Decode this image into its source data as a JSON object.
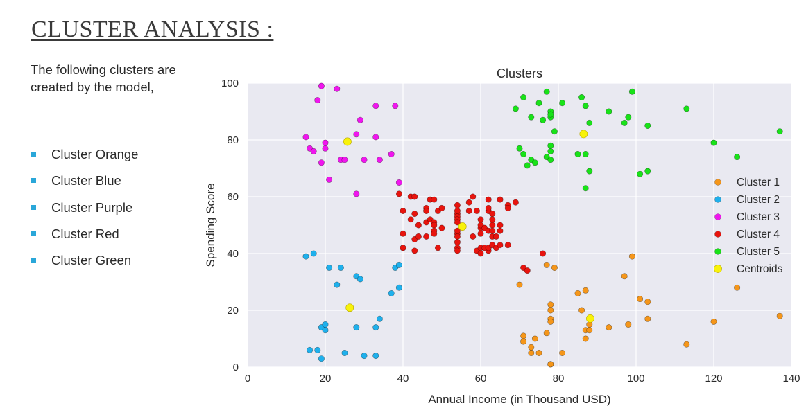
{
  "page": {
    "title": "CLUSTER ANALYSIS :",
    "intro": "The following clusters are created by the model,",
    "bullets": [
      "Cluster Orange",
      "Cluster Blue",
      "Cluster Purple",
      "Cluster Red",
      "Cluster Green"
    ],
    "bullet_color": "#2aa7d9"
  },
  "chart_data": {
    "type": "scatter",
    "title": "Clusters",
    "xlabel": "Annual Income (in Thousand USD)",
    "ylabel": "Spending Score",
    "xlim": [
      0,
      140
    ],
    "ylim": [
      0,
      100
    ],
    "xticks": [
      0,
      20,
      40,
      60,
      80,
      100,
      120,
      140
    ],
    "yticks": [
      0,
      20,
      40,
      60,
      80,
      100
    ],
    "grid": true,
    "background": "#e9e9f1",
    "legend_position": "right",
    "series": [
      {
        "name": "Cluster 1",
        "color": "#f5961a",
        "points": [
          [
            70,
            29
          ],
          [
            71,
            11
          ],
          [
            71,
            9
          ],
          [
            73,
            5
          ],
          [
            73,
            7
          ],
          [
            74,
            10
          ],
          [
            75,
            5
          ],
          [
            77,
            12
          ],
          [
            77,
            36
          ],
          [
            78,
            22
          ],
          [
            78,
            20
          ],
          [
            78,
            17
          ],
          [
            78,
            16
          ],
          [
            78,
            1
          ],
          [
            78,
            1
          ],
          [
            79,
            35
          ],
          [
            81,
            5
          ],
          [
            85,
            26
          ],
          [
            86,
            20
          ],
          [
            87,
            27
          ],
          [
            87,
            13
          ],
          [
            87,
            10
          ],
          [
            88,
            13
          ],
          [
            88,
            15
          ],
          [
            93,
            14
          ],
          [
            97,
            32
          ],
          [
            98,
            15
          ],
          [
            99,
            39
          ],
          [
            101,
            24
          ],
          [
            103,
            17
          ],
          [
            103,
            23
          ],
          [
            113,
            8
          ],
          [
            120,
            16
          ],
          [
            126,
            28
          ],
          [
            137,
            18
          ]
        ]
      },
      {
        "name": "Cluster 2",
        "color": "#1fb0ec",
        "points": [
          [
            15,
            39
          ],
          [
            16,
            6
          ],
          [
            17,
            40
          ],
          [
            18,
            6
          ],
          [
            19,
            3
          ],
          [
            19,
            14
          ],
          [
            20,
            15
          ],
          [
            20,
            13
          ],
          [
            21,
            35
          ],
          [
            23,
            29
          ],
          [
            24,
            35
          ],
          [
            25,
            5
          ],
          [
            28,
            14
          ],
          [
            28,
            32
          ],
          [
            29,
            31
          ],
          [
            30,
            4
          ],
          [
            33,
            4
          ],
          [
            33,
            14
          ],
          [
            34,
            17
          ],
          [
            37,
            26
          ],
          [
            38,
            35
          ],
          [
            39,
            36
          ],
          [
            39,
            28
          ]
        ]
      },
      {
        "name": "Cluster 3",
        "color": "#f016ee",
        "points": [
          [
            15,
            81
          ],
          [
            16,
            77
          ],
          [
            17,
            76
          ],
          [
            18,
            94
          ],
          [
            19,
            72
          ],
          [
            19,
            99
          ],
          [
            20,
            77
          ],
          [
            20,
            79
          ],
          [
            21,
            66
          ],
          [
            23,
            98
          ],
          [
            24,
            73
          ],
          [
            25,
            73
          ],
          [
            28,
            82
          ],
          [
            28,
            61
          ],
          [
            29,
            87
          ],
          [
            30,
            73
          ],
          [
            33,
            81
          ],
          [
            33,
            92
          ],
          [
            34,
            73
          ],
          [
            37,
            75
          ],
          [
            38,
            92
          ],
          [
            39,
            65
          ]
        ]
      },
      {
        "name": "Cluster 4",
        "color": "#e8140e",
        "points": [
          [
            39,
            61
          ],
          [
            40,
            55
          ],
          [
            40,
            47
          ],
          [
            40,
            42
          ],
          [
            40,
            42
          ],
          [
            42,
            52
          ],
          [
            42,
            60
          ],
          [
            43,
            60
          ],
          [
            43,
            54
          ],
          [
            43,
            45
          ],
          [
            43,
            41
          ],
          [
            44,
            50
          ],
          [
            44,
            46
          ],
          [
            46,
            51
          ],
          [
            46,
            46
          ],
          [
            46,
            56
          ],
          [
            46,
            55
          ],
          [
            47,
            52
          ],
          [
            47,
            59
          ],
          [
            48,
            51
          ],
          [
            48,
            59
          ],
          [
            48,
            50
          ],
          [
            48,
            48
          ],
          [
            48,
            47
          ],
          [
            49,
            55
          ],
          [
            49,
            42
          ],
          [
            50,
            49
          ],
          [
            50,
            56
          ],
          [
            54,
            47
          ],
          [
            54,
            54
          ],
          [
            54,
            53
          ],
          [
            54,
            48
          ],
          [
            54,
            52
          ],
          [
            54,
            42
          ],
          [
            54,
            51
          ],
          [
            54,
            55
          ],
          [
            54,
            41
          ],
          [
            54,
            44
          ],
          [
            54,
            57
          ],
          [
            54,
            46
          ],
          [
            57,
            58
          ],
          [
            57,
            55
          ],
          [
            58,
            60
          ],
          [
            58,
            46
          ],
          [
            59,
            55
          ],
          [
            59,
            41
          ],
          [
            60,
            49
          ],
          [
            60,
            40
          ],
          [
            60,
            42
          ],
          [
            60,
            52
          ],
          [
            60,
            47
          ],
          [
            60,
            50
          ],
          [
            61,
            42
          ],
          [
            61,
            49
          ],
          [
            62,
            41
          ],
          [
            62,
            48
          ],
          [
            62,
            59
          ],
          [
            62,
            55
          ],
          [
            62,
            56
          ],
          [
            62,
            42
          ],
          [
            63,
            50
          ],
          [
            63,
            46
          ],
          [
            63,
            43
          ],
          [
            63,
            48
          ],
          [
            63,
            52
          ],
          [
            63,
            54
          ],
          [
            64,
            42
          ],
          [
            64,
            46
          ],
          [
            65,
            48
          ],
          [
            65,
            50
          ],
          [
            65,
            43
          ],
          [
            65,
            59
          ],
          [
            67,
            43
          ],
          [
            67,
            57
          ],
          [
            67,
            56
          ],
          [
            69,
            58
          ],
          [
            71,
            35
          ],
          [
            72,
            34
          ],
          [
            76,
            40
          ]
        ]
      },
      {
        "name": "Cluster 5",
        "color": "#19e219",
        "points": [
          [
            69,
            91
          ],
          [
            70,
            77
          ],
          [
            71,
            95
          ],
          [
            71,
            75
          ],
          [
            72,
            71
          ],
          [
            73,
            88
          ],
          [
            73,
            73
          ],
          [
            74,
            72
          ],
          [
            75,
            93
          ],
          [
            76,
            87
          ],
          [
            77,
            97
          ],
          [
            77,
            74
          ],
          [
            78,
            90
          ],
          [
            78,
            88
          ],
          [
            78,
            89
          ],
          [
            78,
            78
          ],
          [
            78,
            73
          ],
          [
            78,
            76
          ],
          [
            79,
            83
          ],
          [
            81,
            93
          ],
          [
            85,
            75
          ],
          [
            86,
            95
          ],
          [
            87,
            63
          ],
          [
            87,
            75
          ],
          [
            87,
            92
          ],
          [
            88,
            86
          ],
          [
            88,
            69
          ],
          [
            93,
            90
          ],
          [
            97,
            86
          ],
          [
            98,
            88
          ],
          [
            99,
            97
          ],
          [
            101,
            68
          ],
          [
            103,
            85
          ],
          [
            103,
            69
          ],
          [
            113,
            91
          ],
          [
            120,
            79
          ],
          [
            126,
            74
          ],
          [
            137,
            83
          ]
        ]
      },
      {
        "name": "Centroids",
        "color": "#f8f20a",
        "points": [
          [
            88.2,
            17.1
          ],
          [
            26.3,
            20.9
          ],
          [
            25.7,
            79.4
          ],
          [
            55.3,
            49.5
          ],
          [
            86.5,
            82.1
          ]
        ]
      }
    ]
  }
}
